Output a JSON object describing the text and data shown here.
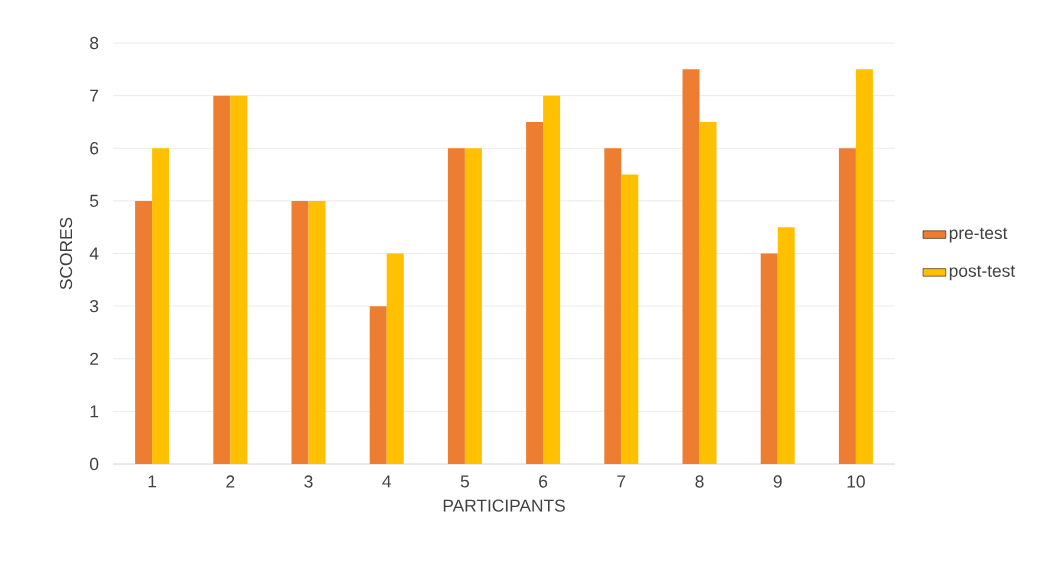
{
  "chart_data": {
    "type": "bar",
    "xlabel": "PARTICIPANTS",
    "ylabel": "SCORES",
    "categories": [
      "1",
      "2",
      "3",
      "4",
      "5",
      "6",
      "7",
      "8",
      "9",
      "10"
    ],
    "series": [
      {
        "name": "pre-test",
        "color": "#ed7d31",
        "values": [
          5,
          7,
          5,
          3,
          6,
          6.5,
          6,
          7.5,
          4,
          6
        ]
      },
      {
        "name": "post-test",
        "color": "#ffc000",
        "values": [
          6,
          7,
          5,
          4,
          6,
          7,
          5.5,
          6.5,
          4.5,
          7.5
        ]
      }
    ],
    "ylim": [
      0,
      8
    ],
    "yticks": [
      0,
      1,
      2,
      3,
      4,
      5,
      6,
      7,
      8
    ],
    "grid": "y",
    "legend": "right"
  }
}
